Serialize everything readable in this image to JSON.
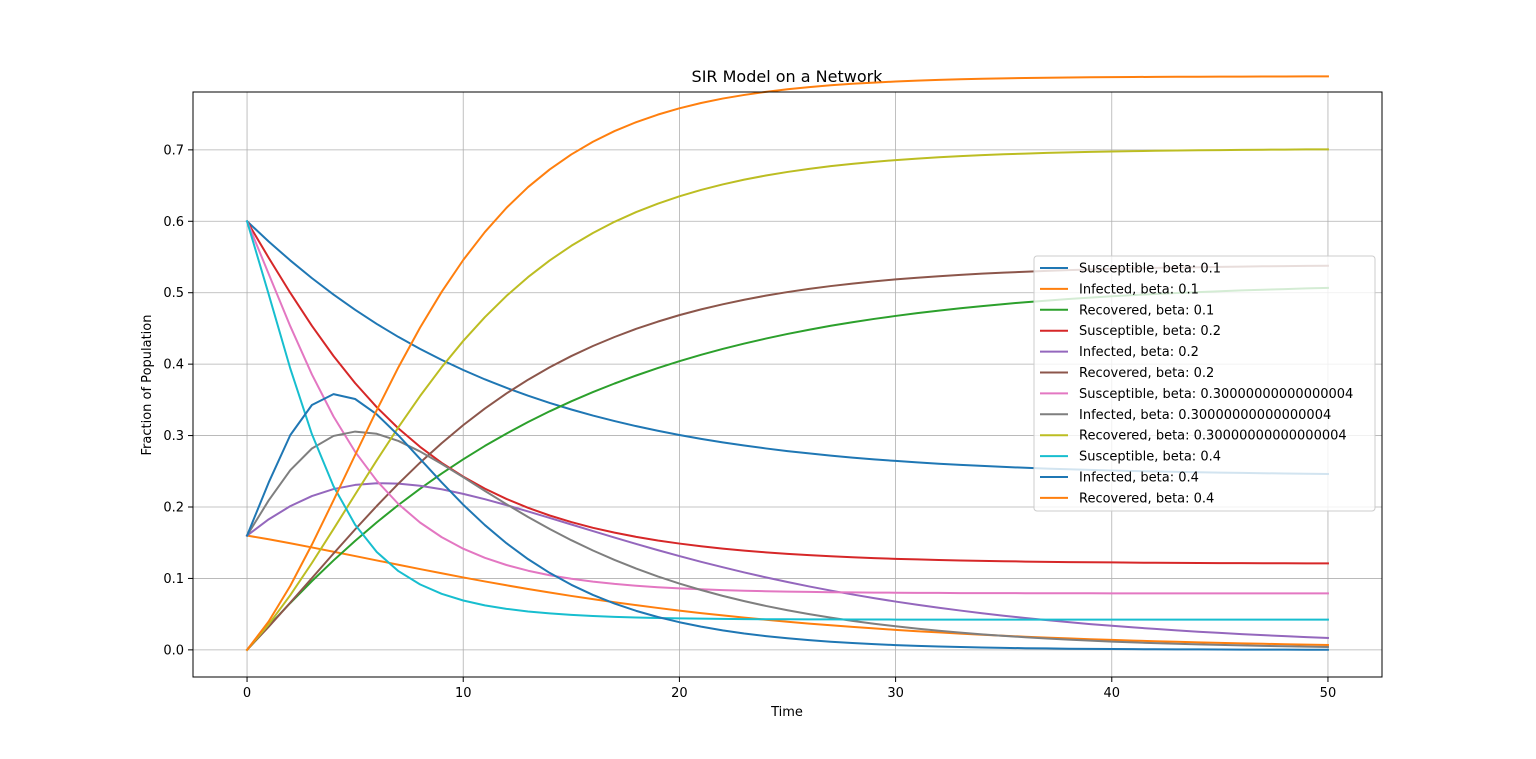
{
  "chart_data": {
    "type": "line",
    "title": "SIR Model on a Network",
    "xlabel": "Time",
    "ylabel": "Fraction of Population",
    "xlim": [
      -2.5,
      52.5
    ],
    "ylim": [
      -0.038,
      0.781
    ],
    "xticks": [
      0,
      10,
      20,
      30,
      40,
      50
    ],
    "xtick_labels": [
      "0",
      "10",
      "20",
      "30",
      "40",
      "50"
    ],
    "yticks": [
      0.0,
      0.1,
      0.2,
      0.3,
      0.4,
      0.5,
      0.6,
      0.7
    ],
    "ytick_labels": [
      "0.0",
      "0.1",
      "0.2",
      "0.3",
      "0.4",
      "0.5",
      "0.6",
      "0.7"
    ],
    "grid": true,
    "legend_position": "center-right",
    "x": [
      0,
      1,
      2,
      3,
      4,
      5,
      6,
      7,
      8,
      9,
      10,
      11,
      12,
      13,
      14,
      15,
      16,
      17,
      18,
      19,
      20,
      21,
      22,
      23,
      24,
      25,
      26,
      27,
      28,
      29,
      30,
      31,
      32,
      33,
      34,
      35,
      36,
      37,
      38,
      39,
      40,
      41,
      42,
      43,
      44,
      45,
      46,
      47,
      48,
      49,
      50
    ],
    "series": [
      {
        "name": "Susceptible, beta: 0.1",
        "color": "#1f77b4",
        "values": [
          0.6,
          0.5717,
          0.5452,
          0.5204,
          0.4974,
          0.4761,
          0.4563,
          0.4381,
          0.4214,
          0.406,
          0.3918,
          0.3787,
          0.3668,
          0.3558,
          0.3457,
          0.3365,
          0.328,
          0.3203,
          0.3132,
          0.3067,
          0.3008,
          0.2954,
          0.2905,
          0.2861,
          0.282,
          0.2783,
          0.275,
          0.2719,
          0.2692,
          0.2667,
          0.2645,
          0.2625,
          0.2606,
          0.259,
          0.2575,
          0.2561,
          0.2549,
          0.2538,
          0.2528,
          0.2519,
          0.2511,
          0.2504,
          0.2497,
          0.2491,
          0.2486,
          0.2481,
          0.2477,
          0.2473,
          0.2469,
          0.2466,
          0.2463
        ]
      },
      {
        "name": "Infected, beta: 0.1",
        "color": "#ff7f0e",
        "values": [
          0.16,
          0.1548,
          0.1492,
          0.1434,
          0.1374,
          0.1313,
          0.1252,
          0.1191,
          0.1131,
          0.1072,
          0.1014,
          0.0958,
          0.0904,
          0.0852,
          0.0803,
          0.0755,
          0.071,
          0.0667,
          0.0626,
          0.0587,
          0.055,
          0.0515,
          0.0482,
          0.0451,
          0.0422,
          0.0394,
          0.0368,
          0.0344,
          0.0321,
          0.03,
          0.028,
          0.0261,
          0.0244,
          0.0227,
          0.0212,
          0.0198,
          0.0184,
          0.0172,
          0.016,
          0.0149,
          0.0139,
          0.013,
          0.0121,
          0.0113,
          0.0105,
          0.0098,
          0.0091,
          0.0085,
          0.0079,
          0.0074,
          0.0069
        ]
      },
      {
        "name": "Recovered, beta: 0.1",
        "color": "#2ca02c",
        "values": [
          0.0,
          0.0335,
          0.0656,
          0.0962,
          0.1252,
          0.1526,
          0.1785,
          0.2028,
          0.2255,
          0.2468,
          0.2668,
          0.2855,
          0.3028,
          0.319,
          0.334,
          0.348,
          0.3609,
          0.3729,
          0.3841,
          0.3945,
          0.4041,
          0.4131,
          0.4213,
          0.4288,
          0.4358,
          0.4423,
          0.4482,
          0.4537,
          0.4587,
          0.4633,
          0.4675,
          0.4714,
          0.475,
          0.4783,
          0.4813,
          0.4841,
          0.4867,
          0.489,
          0.4912,
          0.4932,
          0.495,
          0.4967,
          0.4982,
          0.4996,
          0.5009,
          0.5021,
          0.5032,
          0.5042,
          0.5051,
          0.506,
          0.5068
        ]
      },
      {
        "name": "Susceptible, beta: 0.2",
        "color": "#d62728",
        "values": [
          0.6,
          0.549,
          0.4998,
          0.4537,
          0.4114,
          0.3734,
          0.3397,
          0.3101,
          0.2843,
          0.2619,
          0.2425,
          0.2257,
          0.2113,
          0.1988,
          0.1881,
          0.1789,
          0.1709,
          0.1641,
          0.1582,
          0.1531,
          0.1488,
          0.145,
          0.1417,
          0.1389,
          0.1365,
          0.1344,
          0.1326,
          0.131,
          0.1296,
          0.1285,
          0.1274,
          0.1266,
          0.1258,
          0.1251,
          0.1246,
          0.1241,
          0.1236,
          0.1232,
          0.1229,
          0.1226,
          0.1224,
          0.1221,
          0.1219,
          0.1218,
          0.1216,
          0.1215,
          0.1214,
          0.1213,
          0.1212,
          0.1211,
          0.1211
        ]
      },
      {
        "name": "Infected, beta: 0.2",
        "color": "#9467bd",
        "values": [
          0.16,
          0.1827,
          0.2012,
          0.2153,
          0.2251,
          0.2309,
          0.2333,
          0.2327,
          0.2297,
          0.2248,
          0.2184,
          0.2109,
          0.2026,
          0.1938,
          0.1847,
          0.1755,
          0.1663,
          0.1572,
          0.1483,
          0.1396,
          0.1313,
          0.1233,
          0.1157,
          0.1084,
          0.1015,
          0.095,
          0.0888,
          0.083,
          0.0776,
          0.0724,
          0.0676,
          0.0631,
          0.0589,
          0.055,
          0.0513,
          0.0478,
          0.0446,
          0.0416,
          0.0388,
          0.0361,
          0.0337,
          0.0314,
          0.0293,
          0.0273,
          0.0254,
          0.0237,
          0.0221,
          0.0206,
          0.0192,
          0.0179,
          0.0166
        ]
      },
      {
        "name": "Recovered, beta: 0.2",
        "color": "#8c564b",
        "values": [
          0.0,
          0.0323,
          0.066,
          0.1004,
          0.1349,
          0.1687,
          0.2014,
          0.2326,
          0.262,
          0.2893,
          0.3146,
          0.3378,
          0.359,
          0.3782,
          0.3956,
          0.4113,
          0.4254,
          0.438,
          0.4494,
          0.4595,
          0.4686,
          0.4767,
          0.4838,
          0.4902,
          0.4959,
          0.5009,
          0.5054,
          0.5093,
          0.5128,
          0.5159,
          0.5186,
          0.521,
          0.5231,
          0.525,
          0.5267,
          0.5281,
          0.5294,
          0.5306,
          0.5316,
          0.5325,
          0.5333,
          0.534,
          0.5347,
          0.5352,
          0.5357,
          0.5362,
          0.5366,
          0.537,
          0.5373,
          0.5376,
          0.5378
        ]
      },
      {
        "name": "Susceptible, beta: 0.30000000000000004",
        "color": "#e377c2",
        "values": [
          0.6,
          0.5264,
          0.4531,
          0.3856,
          0.3267,
          0.2773,
          0.2368,
          0.2042,
          0.1783,
          0.1578,
          0.1416,
          0.1289,
          0.1188,
          0.1108,
          0.1045,
          0.0995,
          0.0955,
          0.0923,
          0.0898,
          0.0877,
          0.0861,
          0.0848,
          0.0837,
          0.0828,
          0.0821,
          0.0816,
          0.0811,
          0.0807,
          0.0804,
          0.0802,
          0.08,
          0.0798,
          0.0797,
          0.0795,
          0.0794,
          0.0794,
          0.0793,
          0.0793,
          0.0792,
          0.0792,
          0.0791,
          0.0791,
          0.0791,
          0.0791,
          0.0791,
          0.079,
          0.079,
          0.079,
          0.079,
          0.079,
          0.079
        ]
      },
      {
        "name": "Infected, beta: 0.30000000000000004",
        "color": "#7f7f7f",
        "values": [
          0.16,
          0.2092,
          0.2515,
          0.2819,
          0.2995,
          0.3056,
          0.3025,
          0.2925,
          0.2778,
          0.2604,
          0.2417,
          0.2226,
          0.2039,
          0.186,
          0.1692,
          0.1535,
          0.1391,
          0.1259,
          0.1138,
          0.1028,
          0.0928,
          0.0838,
          0.0756,
          0.0682,
          0.0615,
          0.0555,
          0.05,
          0.0451,
          0.0406,
          0.0366,
          0.033,
          0.0297,
          0.0268,
          0.0241,
          0.0217,
          0.0196,
          0.0176,
          0.0159,
          0.0143,
          0.0129,
          0.0116,
          0.0104,
          0.0094,
          0.0085,
          0.0076,
          0.0069,
          0.0062,
          0.0056,
          0.005,
          0.0045,
          0.0041
        ]
      },
      {
        "name": "Recovered, beta: 0.30000000000000004",
        "color": "#bcbd22",
        "values": [
          0.0,
          0.0356,
          0.0765,
          0.1216,
          0.1691,
          0.2175,
          0.2654,
          0.3116,
          0.3552,
          0.3956,
          0.4325,
          0.4657,
          0.4955,
          0.5219,
          0.5452,
          0.5657,
          0.5836,
          0.5993,
          0.6129,
          0.6247,
          0.635,
          0.6439,
          0.6516,
          0.6583,
          0.6641,
          0.6691,
          0.6734,
          0.6772,
          0.6804,
          0.6832,
          0.6857,
          0.6878,
          0.6896,
          0.6912,
          0.6926,
          0.6938,
          0.6948,
          0.6957,
          0.6965,
          0.6972,
          0.6977,
          0.6982,
          0.6987,
          0.6991,
          0.6994,
          0.6997,
          0.7,
          0.7002,
          0.7004,
          0.7006,
          0.7007
        ]
      },
      {
        "name": "Susceptible, beta: 0.4",
        "color": "#17becf",
        "values": [
          0.6,
          0.4979,
          0.3939,
          0.302,
          0.2291,
          0.1752,
          0.137,
          0.1103,
          0.0917,
          0.0785,
          0.0691,
          0.0623,
          0.0574,
          0.0537,
          0.051,
          0.0489,
          0.0474,
          0.0462,
          0.0453,
          0.0446,
          0.0441,
          0.0437,
          0.0434,
          0.0431,
          0.0429,
          0.0428,
          0.0427,
          0.0426,
          0.0425,
          0.0425,
          0.0424,
          0.0424,
          0.0424,
          0.0424,
          0.0423,
          0.0423,
          0.0423,
          0.0423,
          0.0423,
          0.0423,
          0.0423,
          0.0423,
          0.0423,
          0.0423,
          0.0423,
          0.0423,
          0.0423,
          0.0423,
          0.0423,
          0.0423,
          0.0423
        ]
      },
      {
        "name": "Infected, beta: 0.4",
        "color": "#1f77b4",
        "values": [
          0.16,
          0.2342,
          0.3006,
          0.3428,
          0.358,
          0.3512,
          0.3297,
          0.3003,
          0.2675,
          0.2345,
          0.2032,
          0.1747,
          0.1493,
          0.127,
          0.1077,
          0.0911,
          0.0769,
          0.0648,
          0.0546,
          0.046,
          0.0387,
          0.0325,
          0.0273,
          0.0229,
          0.0193,
          0.0162,
          0.0136,
          0.0114,
          0.0096,
          0.008,
          0.0067,
          0.0056,
          0.0047,
          0.004,
          0.0033,
          0.0028,
          0.0023,
          0.002,
          0.0016,
          0.0014,
          0.0012,
          0.001,
          0.0008,
          0.0007,
          0.0006,
          0.0005,
          0.0004,
          0.0003,
          0.0003,
          0.0002,
          0.0002
        ]
      },
      {
        "name": "Recovered, beta: 0.4",
        "color": "#ff7f0e",
        "values": [
          0.0,
          0.0397,
          0.0896,
          0.1473,
          0.2093,
          0.2728,
          0.3355,
          0.3955,
          0.4509,
          0.5011,
          0.5458,
          0.5849,
          0.6188,
          0.6479,
          0.6726,
          0.6936,
          0.7113,
          0.7263,
          0.7388,
          0.7493,
          0.7582,
          0.7656,
          0.7718,
          0.7769,
          0.7812,
          0.7848,
          0.7878,
          0.7904,
          0.7925,
          0.7942,
          0.7957,
          0.7969,
          0.7979,
          0.7988,
          0.7995,
          0.8001,
          0.8006,
          0.801,
          0.8013,
          0.8016,
          0.8018,
          0.802,
          0.8022,
          0.8023,
          0.8024,
          0.8025,
          0.8026,
          0.8027,
          0.8027,
          0.8028,
          0.8028
        ]
      }
    ]
  }
}
